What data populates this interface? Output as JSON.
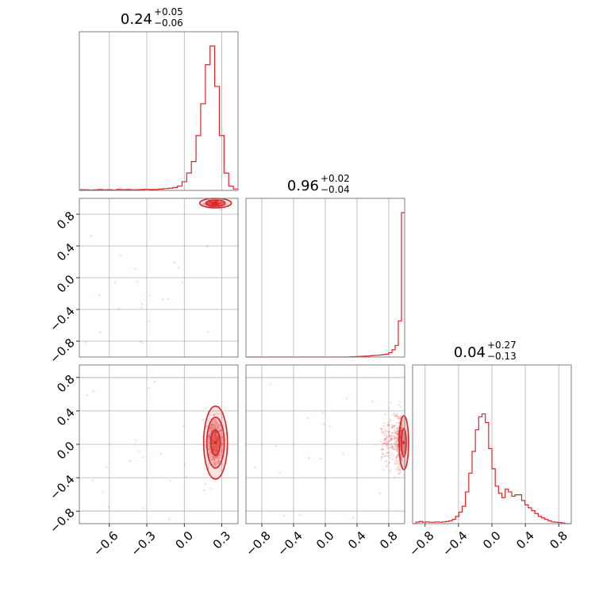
{
  "chart_data": {
    "type": "corner",
    "colors": {
      "main": "#d62728",
      "grid": "#b0b0b0",
      "frame": "#7f7f7f"
    },
    "grid": true,
    "parameters": [
      {
        "median": "0.24",
        "plus": "+0.05",
        "minus": "−0.06",
        "range": [
          -0.84,
          0.43
        ],
        "hist": [
          0.005,
          0.004,
          0.003,
          0.004,
          0.006,
          0.004,
          0.005,
          0.003,
          0.007,
          0.005,
          0.006,
          0.004,
          0.005,
          0.006,
          0.008,
          0.006,
          0.007,
          0.009,
          0.012,
          0.015,
          0.02,
          0.03,
          0.06,
          0.12,
          0.2,
          0.38,
          0.6,
          0.87,
          1.0,
          0.72,
          0.38,
          0.12,
          0.03,
          0.01
        ]
      },
      {
        "median": "0.96",
        "plus": "+0.02",
        "minus": "−0.04",
        "range": [
          -1.0,
          1.0
        ],
        "hist": [
          0,
          0,
          0,
          0,
          0,
          0,
          0,
          0,
          0,
          0,
          0,
          0,
          0,
          0,
          0,
          0,
          0,
          0,
          0,
          0,
          0,
          0,
          0,
          0,
          0,
          0,
          0,
          0,
          0,
          0,
          0,
          0,
          0.001,
          0.002,
          0.003,
          0.004,
          0.005,
          0.006,
          0.007,
          0.009,
          0.011,
          0.012,
          0.014,
          0.017,
          0.02,
          0.03,
          0.05,
          0.08,
          0.25,
          1.0
        ]
      },
      {
        "median": "0.04",
        "plus": "+0.27",
        "minus": "−0.13",
        "range": [
          -0.95,
          0.95
        ],
        "hist": [
          0.0,
          0.01,
          0.015,
          0.01,
          0.012,
          0.01,
          0.01,
          0.012,
          0.01,
          0.012,
          0.015,
          0.02,
          0.03,
          0.05,
          0.08,
          0.12,
          0.22,
          0.35,
          0.5,
          0.65,
          0.74,
          0.76,
          0.7,
          0.52,
          0.38,
          0.26,
          0.21,
          0.18,
          0.24,
          0.22,
          0.19,
          0.2,
          0.2,
          0.16,
          0.13,
          0.11,
          0.09,
          0.07,
          0.05,
          0.04,
          0.03,
          0.02,
          0.012,
          0.01,
          0.008,
          0.005,
          0.0,
          0.0
        ]
      }
    ],
    "x_ticks": [
      [
        "−0.6",
        "−0.3",
        "0.0",
        "0.3"
      ],
      [
        "−0.8",
        "−0.4",
        "0.0",
        "0.4",
        "0.8"
      ],
      [
        "−0.8",
        "−0.4",
        "0.0",
        "0.4",
        "0.8"
      ]
    ],
    "y_ticks": [
      [
        "0.8",
        "0.4",
        "0.0",
        "−0.4",
        "−0.8"
      ],
      [
        "0.8",
        "0.4",
        "0.0",
        "−0.4",
        "−0.8"
      ]
    ]
  }
}
